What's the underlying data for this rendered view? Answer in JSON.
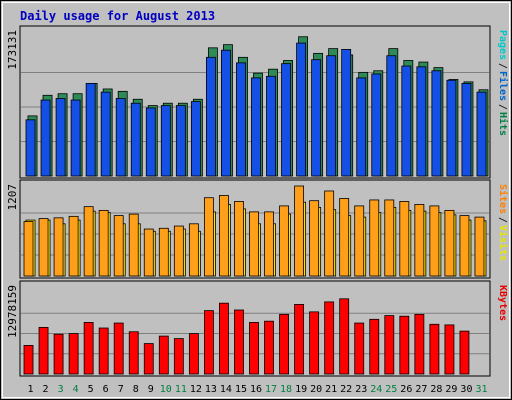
{
  "chart_data": [
    {
      "type": "bar",
      "title": "Daily usage for August 2013",
      "categories": [
        "1",
        "2",
        "3",
        "4",
        "5",
        "6",
        "7",
        "8",
        "9",
        "10",
        "11",
        "12",
        "13",
        "14",
        "15",
        "16",
        "17",
        "18",
        "19",
        "20",
        "21",
        "22",
        "23",
        "24",
        "25",
        "26",
        "27",
        "28",
        "29",
        "30",
        "31"
      ],
      "weekend_days": [
        "3",
        "4",
        "10",
        "11",
        "17",
        "18",
        "24",
        "25",
        "31"
      ],
      "ylabel_tick": "173131",
      "ylim": [
        0,
        182000
      ],
      "legend": [
        "Pages",
        "Files",
        "Hits"
      ],
      "legend_colors": [
        "#00c8c8",
        "#0064c8",
        "#008040"
      ],
      "series": [
        {
          "name": "Hits",
          "color": "#2e8b57",
          "values": [
            76000,
            102000,
            104000,
            104000,
            117000,
            110000,
            107000,
            97000,
            89000,
            92000,
            92000,
            97000,
            162000,
            166000,
            150000,
            130000,
            135000,
            146000,
            176000,
            155000,
            161000,
            153000,
            131000,
            133000,
            161000,
            146000,
            144000,
            137000,
            122000,
            119000,
            109000
          ]
        },
        {
          "name": "Files",
          "color": "#1450e6",
          "values": [
            71000,
            96000,
            98000,
            96000,
            117000,
            106000,
            98000,
            92000,
            86000,
            89000,
            89000,
            94000,
            150000,
            159000,
            143000,
            124000,
            126000,
            142000,
            168000,
            147000,
            152000,
            160000,
            124000,
            129000,
            152000,
            139000,
            138000,
            133000,
            121000,
            117000,
            106000
          ]
        },
        {
          "name": "Pages",
          "color": "#00b4b4",
          "values": [
            0,
            0,
            0,
            0,
            0,
            0,
            0,
            0,
            0,
            0,
            0,
            0,
            0,
            0,
            0,
            0,
            0,
            0,
            0,
            0,
            0,
            0,
            0,
            0,
            0,
            0,
            0,
            0,
            0,
            0,
            0
          ]
        }
      ]
    },
    {
      "type": "bar",
      "categories": [
        "1",
        "2",
        "3",
        "4",
        "5",
        "6",
        "7",
        "8",
        "9",
        "10",
        "11",
        "12",
        "13",
        "14",
        "15",
        "16",
        "17",
        "18",
        "19",
        "20",
        "21",
        "22",
        "23",
        "24",
        "25",
        "26",
        "27",
        "28",
        "29",
        "30",
        "31"
      ],
      "ylabel_tick": "1207",
      "ylim": [
        0,
        1207
      ],
      "legend": [
        "Sites",
        "Visits"
      ],
      "legend_colors": [
        "#ff8000",
        "#e6e600"
      ],
      "series": [
        {
          "name": "Visits",
          "color": "#ffe600",
          "values": [
            750,
            750,
            700,
            750,
            870,
            850,
            700,
            700,
            600,
            600,
            630,
            600,
            860,
            960,
            900,
            700,
            700,
            830,
            990,
            920,
            890,
            810,
            790,
            850,
            920,
            880,
            870,
            850,
            820,
            750,
            740
          ]
        },
        {
          "name": "Sites",
          "color": "#ff9f1a",
          "values": [
            730,
            770,
            780,
            800,
            930,
            880,
            810,
            830,
            630,
            640,
            670,
            700,
            1050,
            1080,
            1000,
            860,
            860,
            940,
            1207,
            1010,
            1140,
            1040,
            940,
            1020,
            1020,
            1000,
            960,
            940,
            880,
            810,
            790
          ]
        }
      ]
    },
    {
      "type": "bar",
      "categories": [
        "1",
        "2",
        "3",
        "4",
        "5",
        "6",
        "7",
        "8",
        "9",
        "10",
        "11",
        "12",
        "13",
        "14",
        "15",
        "16",
        "17",
        "18",
        "19",
        "20",
        "21",
        "22",
        "23",
        "24",
        "25",
        "26",
        "27",
        "28",
        "29",
        "30",
        "31"
      ],
      "ylabel_tick": "12978159",
      "ylim": [
        0,
        14000000
      ],
      "legend": [
        "KBytes"
      ],
      "legend_colors": [
        "#e60000"
      ],
      "series": [
        {
          "name": "KBytes",
          "color": "#ff0000",
          "values": [
            4600000,
            7500000,
            6400000,
            6500000,
            8300000,
            7400000,
            8200000,
            6800000,
            4900000,
            6100000,
            5700000,
            6500000,
            10200000,
            11400000,
            10300000,
            8300000,
            8500000,
            9600000,
            11200000,
            10000000,
            11600000,
            12100000,
            8200000,
            8800000,
            9400000,
            9300000,
            9600000,
            8000000,
            7900000,
            6900000,
            0
          ]
        }
      ]
    }
  ]
}
